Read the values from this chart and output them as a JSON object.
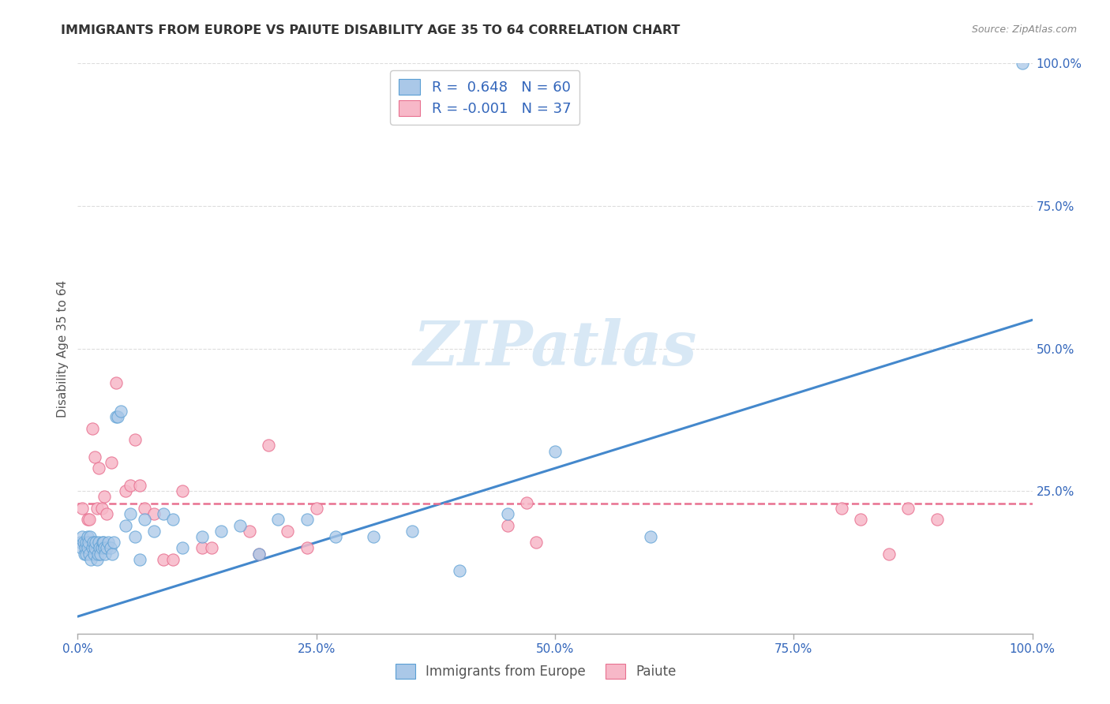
{
  "title": "IMMIGRANTS FROM EUROPE VS PAIUTE DISABILITY AGE 35 TO 64 CORRELATION CHART",
  "source": "Source: ZipAtlas.com",
  "ylabel": "Disability Age 35 to 64",
  "xlim": [
    0.0,
    1.0
  ],
  "ylim": [
    0.0,
    1.0
  ],
  "xtick_vals": [
    0.0,
    0.25,
    0.5,
    0.75,
    1.0
  ],
  "xtick_labels": [
    "0.0%",
    "25.0%",
    "50.0%",
    "75.0%",
    "100.0%"
  ],
  "ytick_vals": [
    0.25,
    0.5,
    0.75,
    1.0
  ],
  "ytick_labels": [
    "25.0%",
    "50.0%",
    "75.0%",
    "100.0%"
  ],
  "legend_labels": [
    "Immigrants from Europe",
    "Paiute"
  ],
  "legend_R": [
    " 0.648",
    "-0.001"
  ],
  "legend_N": [
    "60",
    "37"
  ],
  "blue_fill_color": "#aac8e8",
  "blue_edge_color": "#5a9fd4",
  "pink_fill_color": "#f7b8c8",
  "pink_edge_color": "#e87090",
  "blue_line_color": "#4488cc",
  "pink_line_color": "#e87090",
  "watermark_color": "#d8e8f5",
  "blue_scatter_x": [
    0.003,
    0.004,
    0.005,
    0.006,
    0.007,
    0.008,
    0.009,
    0.009,
    0.01,
    0.01,
    0.011,
    0.012,
    0.013,
    0.014,
    0.015,
    0.016,
    0.017,
    0.018,
    0.019,
    0.02,
    0.021,
    0.022,
    0.023,
    0.024,
    0.025,
    0.026,
    0.027,
    0.028,
    0.029,
    0.03,
    0.032,
    0.034,
    0.036,
    0.038,
    0.04,
    0.042,
    0.045,
    0.05,
    0.055,
    0.06,
    0.065,
    0.07,
    0.08,
    0.09,
    0.1,
    0.11,
    0.13,
    0.15,
    0.17,
    0.19,
    0.21,
    0.24,
    0.27,
    0.31,
    0.35,
    0.4,
    0.45,
    0.5,
    0.6,
    0.99
  ],
  "blue_scatter_y": [
    0.16,
    0.15,
    0.17,
    0.16,
    0.14,
    0.15,
    0.14,
    0.16,
    0.15,
    0.17,
    0.16,
    0.14,
    0.17,
    0.13,
    0.15,
    0.16,
    0.14,
    0.15,
    0.16,
    0.13,
    0.14,
    0.16,
    0.15,
    0.14,
    0.15,
    0.16,
    0.16,
    0.15,
    0.14,
    0.15,
    0.16,
    0.15,
    0.14,
    0.16,
    0.38,
    0.38,
    0.39,
    0.19,
    0.21,
    0.17,
    0.13,
    0.2,
    0.18,
    0.21,
    0.2,
    0.15,
    0.17,
    0.18,
    0.19,
    0.14,
    0.2,
    0.2,
    0.17,
    0.17,
    0.18,
    0.11,
    0.21,
    0.32,
    0.17,
    1.0
  ],
  "pink_scatter_x": [
    0.005,
    0.01,
    0.012,
    0.015,
    0.018,
    0.02,
    0.022,
    0.025,
    0.028,
    0.03,
    0.035,
    0.04,
    0.05,
    0.055,
    0.06,
    0.065,
    0.07,
    0.08,
    0.09,
    0.1,
    0.11,
    0.13,
    0.14,
    0.18,
    0.19,
    0.2,
    0.22,
    0.24,
    0.25,
    0.45,
    0.47,
    0.48,
    0.8,
    0.82,
    0.85,
    0.87,
    0.9
  ],
  "pink_scatter_y": [
    0.22,
    0.2,
    0.2,
    0.36,
    0.31,
    0.22,
    0.29,
    0.22,
    0.24,
    0.21,
    0.3,
    0.44,
    0.25,
    0.26,
    0.34,
    0.26,
    0.22,
    0.21,
    0.13,
    0.13,
    0.25,
    0.15,
    0.15,
    0.18,
    0.14,
    0.33,
    0.18,
    0.15,
    0.22,
    0.19,
    0.23,
    0.16,
    0.22,
    0.2,
    0.14,
    0.22,
    0.2
  ],
  "blue_line_x": [
    0.0,
    1.0
  ],
  "blue_line_y": [
    0.03,
    0.55
  ],
  "pink_line_x": [
    0.0,
    1.0
  ],
  "pink_line_y": [
    0.228,
    0.228
  ],
  "grid_color": "#dddddd",
  "grid_linestyle": "--"
}
